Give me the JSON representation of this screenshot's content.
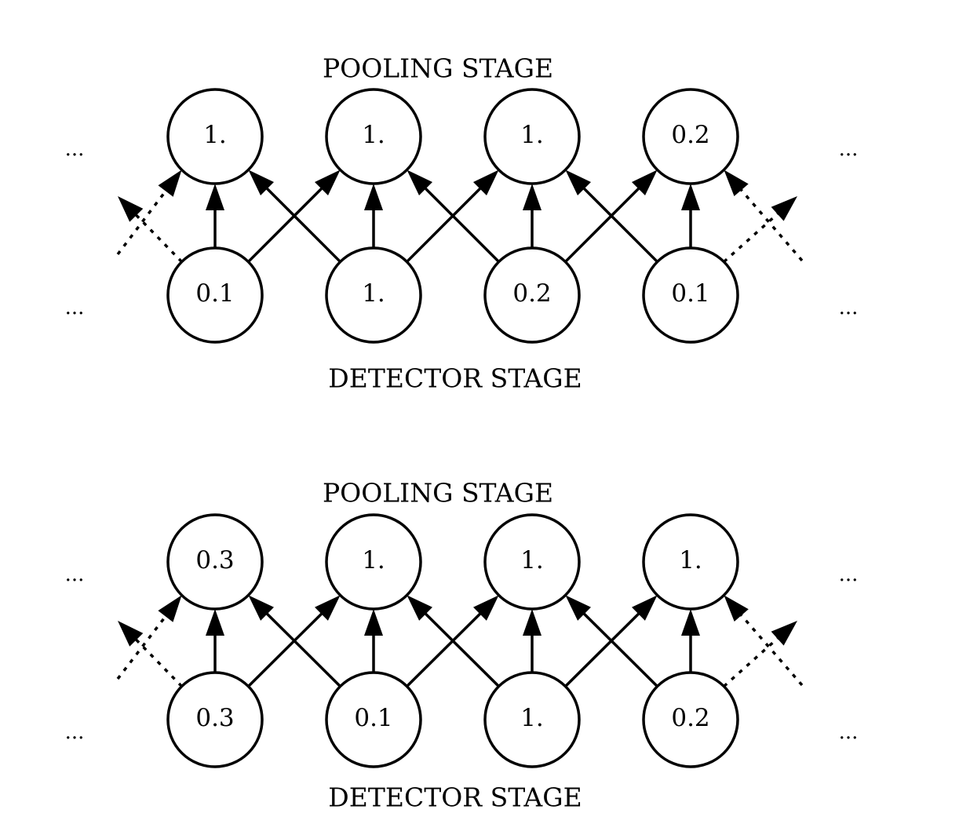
{
  "panels": [
    {
      "pooling_label": "POOLING STAGE",
      "detector_label": "DETECTOR STAGE",
      "pooling_values": [
        "1.",
        "1.",
        "1.",
        "0.2"
      ],
      "detector_values": [
        "0.1",
        "1.",
        "0.2",
        "0.1"
      ],
      "ellipsis": "..."
    },
    {
      "pooling_label": "POOLING STAGE",
      "detector_label": "DETECTOR STAGE",
      "pooling_values": [
        "0.3",
        "1.",
        "1.",
        "1."
      ],
      "detector_values": [
        "0.3",
        "0.1",
        "1.",
        "0.2"
      ],
      "ellipsis": "..."
    }
  ]
}
